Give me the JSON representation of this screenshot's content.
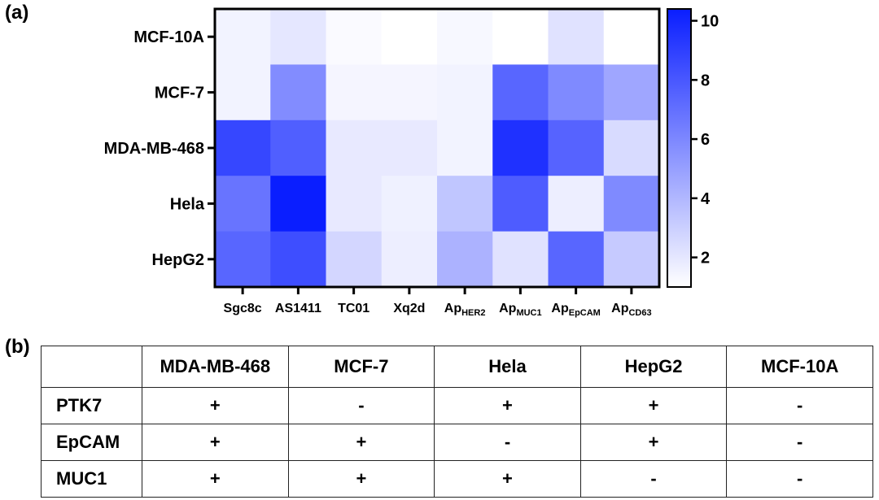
{
  "panel_a_label": "(a)",
  "panel_b_label": "(b)",
  "chart_data": {
    "type": "heatmap",
    "title": "",
    "xlabel": "",
    "ylabel": "",
    "rows": [
      "MCF-10A",
      "MCF-7",
      "MDA-MB-468",
      "Hela",
      "HepG2"
    ],
    "columns": [
      {
        "base": "Sgc8c",
        "sub": ""
      },
      {
        "base": "AS1411",
        "sub": ""
      },
      {
        "base": "TC01",
        "sub": ""
      },
      {
        "base": "Xq2d",
        "sub": ""
      },
      {
        "base": "Ap",
        "sub": "HER2"
      },
      {
        "base": "Ap",
        "sub": "MUC1"
      },
      {
        "base": "Ap",
        "sub": "EpCAM"
      },
      {
        "base": "Ap",
        "sub": "CD63"
      }
    ],
    "values": [
      [
        1.5,
        2.0,
        1.2,
        1.0,
        1.3,
        1.0,
        2.2,
        1.0
      ],
      [
        1.5,
        5.8,
        1.4,
        1.4,
        1.5,
        7.4,
        5.9,
        4.7
      ],
      [
        8.7,
        7.7,
        1.9,
        1.9,
        1.5,
        9.6,
        7.5,
        2.5
      ],
      [
        6.8,
        10.4,
        1.9,
        1.6,
        3.4,
        7.8,
        1.7,
        5.9
      ],
      [
        7.4,
        8.4,
        2.7,
        1.7,
        4.2,
        2.2,
        7.4,
        3.2
      ]
    ],
    "colorbar": {
      "min": 1,
      "max": 10.4,
      "ticks": [
        2,
        4,
        6,
        8,
        10
      ],
      "color_low": "#ffffff",
      "color_high": "#0a1eff"
    }
  },
  "table": {
    "headers": [
      "",
      "MDA-MB-468",
      "MCF-7",
      "Hela",
      "HepG2",
      "MCF-10A"
    ],
    "rows": [
      {
        "label": "PTK7",
        "cells": [
          "+",
          "-",
          "+",
          "+",
          "-"
        ]
      },
      {
        "label": "EpCAM",
        "cells": [
          "+",
          "+",
          "-",
          "+",
          "-"
        ]
      },
      {
        "label": "MUC1",
        "cells": [
          "+",
          "+",
          "+",
          "-",
          "-"
        ]
      }
    ]
  }
}
